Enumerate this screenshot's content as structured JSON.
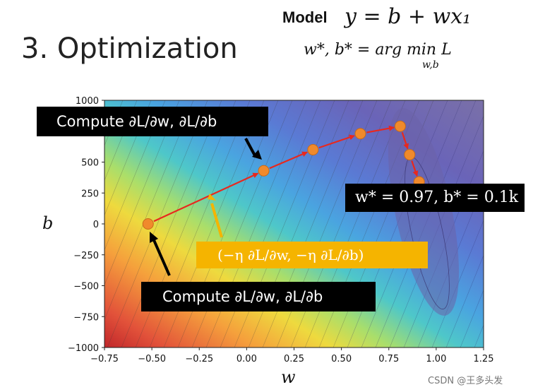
{
  "slide": {
    "title": "3. Optimization",
    "model_label": "Model",
    "model_equation": "y = b + wx₁",
    "argmin_equation": "w*, b* = arg min L",
    "argmin_subscript": "w,b"
  },
  "callouts": {
    "compute_top": "Compute ∂L/∂w, ∂L/∂b",
    "compute_bottom": "Compute ∂L/∂w, ∂L/∂b",
    "update_step": "(−η ∂L/∂w, −η ∂L/∂b)",
    "result": "w* = 0.97, b* = 0.1k"
  },
  "axes": {
    "b_label": "b",
    "w_label": "w"
  },
  "watermark": "CSDN @王多头发",
  "colors": {
    "path": "#e8281e",
    "point": "#f08a2c",
    "update_box": "#f5b400",
    "arrow_black": "#000000"
  },
  "chart_data": {
    "type": "contour",
    "xlabel": "w",
    "ylabel": "b",
    "xlim": [
      -0.75,
      1.25
    ],
    "ylim": [
      -1000,
      1000
    ],
    "x_ticks": [
      "−0.75",
      "−0.50",
      "−0.25",
      "0.00",
      "0.25",
      "0.50",
      "0.75",
      "1.00",
      "1.25"
    ],
    "y_ticks": [
      "1000",
      "500",
      "250",
      "0",
      "−250",
      "−500",
      "−750",
      "−1000"
    ],
    "y_tick_values": [
      1000,
      500,
      250,
      0,
      -250,
      -500,
      -750,
      -1000
    ],
    "x_tick_values": [
      -0.75,
      -0.5,
      -0.25,
      0.0,
      0.25,
      0.5,
      0.75,
      1.0,
      1.25
    ],
    "optimization_path": [
      {
        "w": -0.52,
        "b": 0
      },
      {
        "w": 0.09,
        "b": 430
      },
      {
        "w": 0.35,
        "b": 600
      },
      {
        "w": 0.6,
        "b": 730
      },
      {
        "w": 0.81,
        "b": 790
      },
      {
        "w": 0.86,
        "b": 560
      },
      {
        "w": 0.91,
        "b": 340
      }
    ]
  }
}
